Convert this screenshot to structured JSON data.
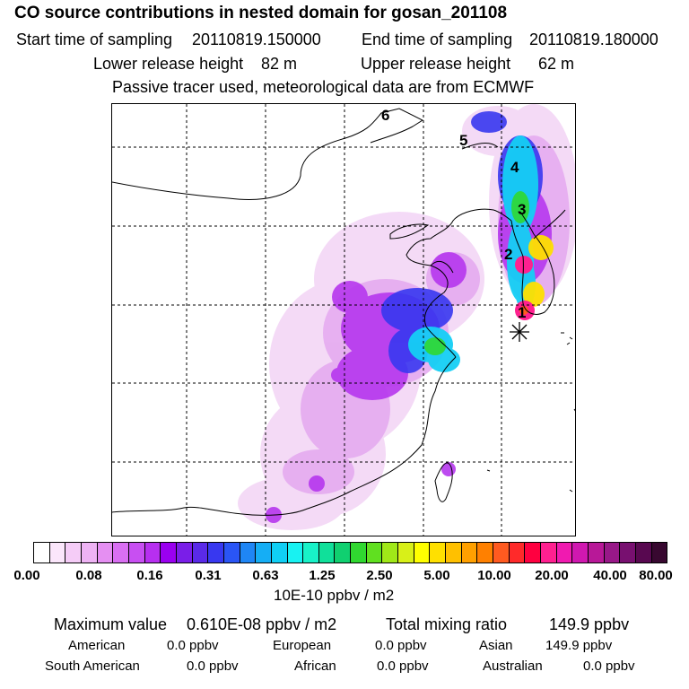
{
  "header": {
    "title": "CO  source contributions in nested domain for gosan_201108",
    "start_label": "Start time of sampling",
    "start_value": "20110819.150000",
    "end_label": "End time of sampling",
    "end_value": "20110819.180000",
    "lower_label": "Lower release height",
    "lower_value": "82 m",
    "upper_label": "Upper release height",
    "upper_value": "62 m",
    "passive_note": "Passive tracer used, meteorological data are from ECMWF"
  },
  "map": {
    "path_labels": [
      "1",
      "2",
      "3",
      "4",
      "5",
      "6"
    ],
    "receptor_marker": "asterisk-icon"
  },
  "colorbar": {
    "colors": [
      "#ffffff",
      "#fbe6fb",
      "#f5ccf7",
      "#eeb3f4",
      "#e58ff2",
      "#d96ff2",
      "#c84ff2",
      "#b72ff0",
      "#9a00f0",
      "#7a1ee8",
      "#5a2ae8",
      "#3838f0",
      "#2a55f5",
      "#1f86f5",
      "#15aef5",
      "#10cff5",
      "#18f2f2",
      "#18f2c8",
      "#10e09a",
      "#10d070",
      "#30d830",
      "#60e020",
      "#a0e818",
      "#d8f018",
      "#ffff00",
      "#ffe000",
      "#ffc000",
      "#ffa000",
      "#ff8000",
      "#ff5a20",
      "#ff2a2a",
      "#ff0040",
      "#ff2090",
      "#f01ab0",
      "#d018b0",
      "#b81898",
      "#981888",
      "#781070",
      "#580850",
      "#380830"
    ],
    "ticks": [
      "0.00",
      "0.08",
      "0.16",
      "0.31",
      "0.63",
      "1.25",
      "2.50",
      "5.00",
      "10.00",
      "20.00",
      "40.00",
      "80.00"
    ],
    "unit": "10E-10 ppbv / m2"
  },
  "summary": {
    "max_label": "Maximum value",
    "max_value": "0.610E-08 ppbv / m2",
    "total_label": "Total mixing ratio",
    "total_value": "149.9 ppbv",
    "american_label": "American",
    "american_value": "0.0 ppbv",
    "european_label": "European",
    "european_value": "0.0 ppbv",
    "asian_label": "Asian",
    "asian_value": "149.9 ppbv",
    "south_american_label": "South American",
    "south_american_value": "0.0 ppbv",
    "african_label": "African",
    "african_value": "0.0 ppbv",
    "australian_label": "Australian",
    "australian_value": "0.0 ppbv"
  }
}
